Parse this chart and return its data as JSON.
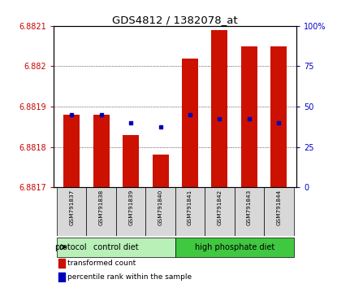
{
  "title": "GDS4812 / 1382078_at",
  "samples": [
    "GSM791837",
    "GSM791838",
    "GSM791839",
    "GSM791840",
    "GSM791841",
    "GSM791842",
    "GSM791843",
    "GSM791844"
  ],
  "red_values": [
    6.88188,
    6.88188,
    6.88183,
    6.88178,
    6.88202,
    6.88209,
    6.88205,
    6.88205
  ],
  "blue_values": [
    6.88188,
    6.88188,
    6.88186,
    6.88185,
    6.88188,
    6.88187,
    6.88187,
    6.88186
  ],
  "ylim": [
    6.8817,
    6.8821
  ],
  "yticks_left": [
    6.8817,
    6.8818,
    6.8819,
    6.882,
    6.8821
  ],
  "yticks_right": [
    0,
    25,
    50,
    75,
    100
  ],
  "yticks_right_labels": [
    "0",
    "25",
    "50",
    "75",
    "100%"
  ],
  "groups": [
    {
      "label": "control diet",
      "start": 0,
      "end": 3,
      "color": "#b8f0b8"
    },
    {
      "label": "high phosphate diet",
      "start": 4,
      "end": 7,
      "color": "#40c840"
    }
  ],
  "protocol_label": "protocol",
  "legend_items": [
    {
      "color": "#cc1100",
      "label": "transformed count"
    },
    {
      "color": "#0000bb",
      "label": "percentile rank within the sample"
    }
  ],
  "bar_color": "#cc1100",
  "blue_color": "#0000bb",
  "left_tick_color": "#cc0000",
  "right_tick_color": "#0000cc",
  "bg_color": "#d8d8d8",
  "base": 6.8817
}
